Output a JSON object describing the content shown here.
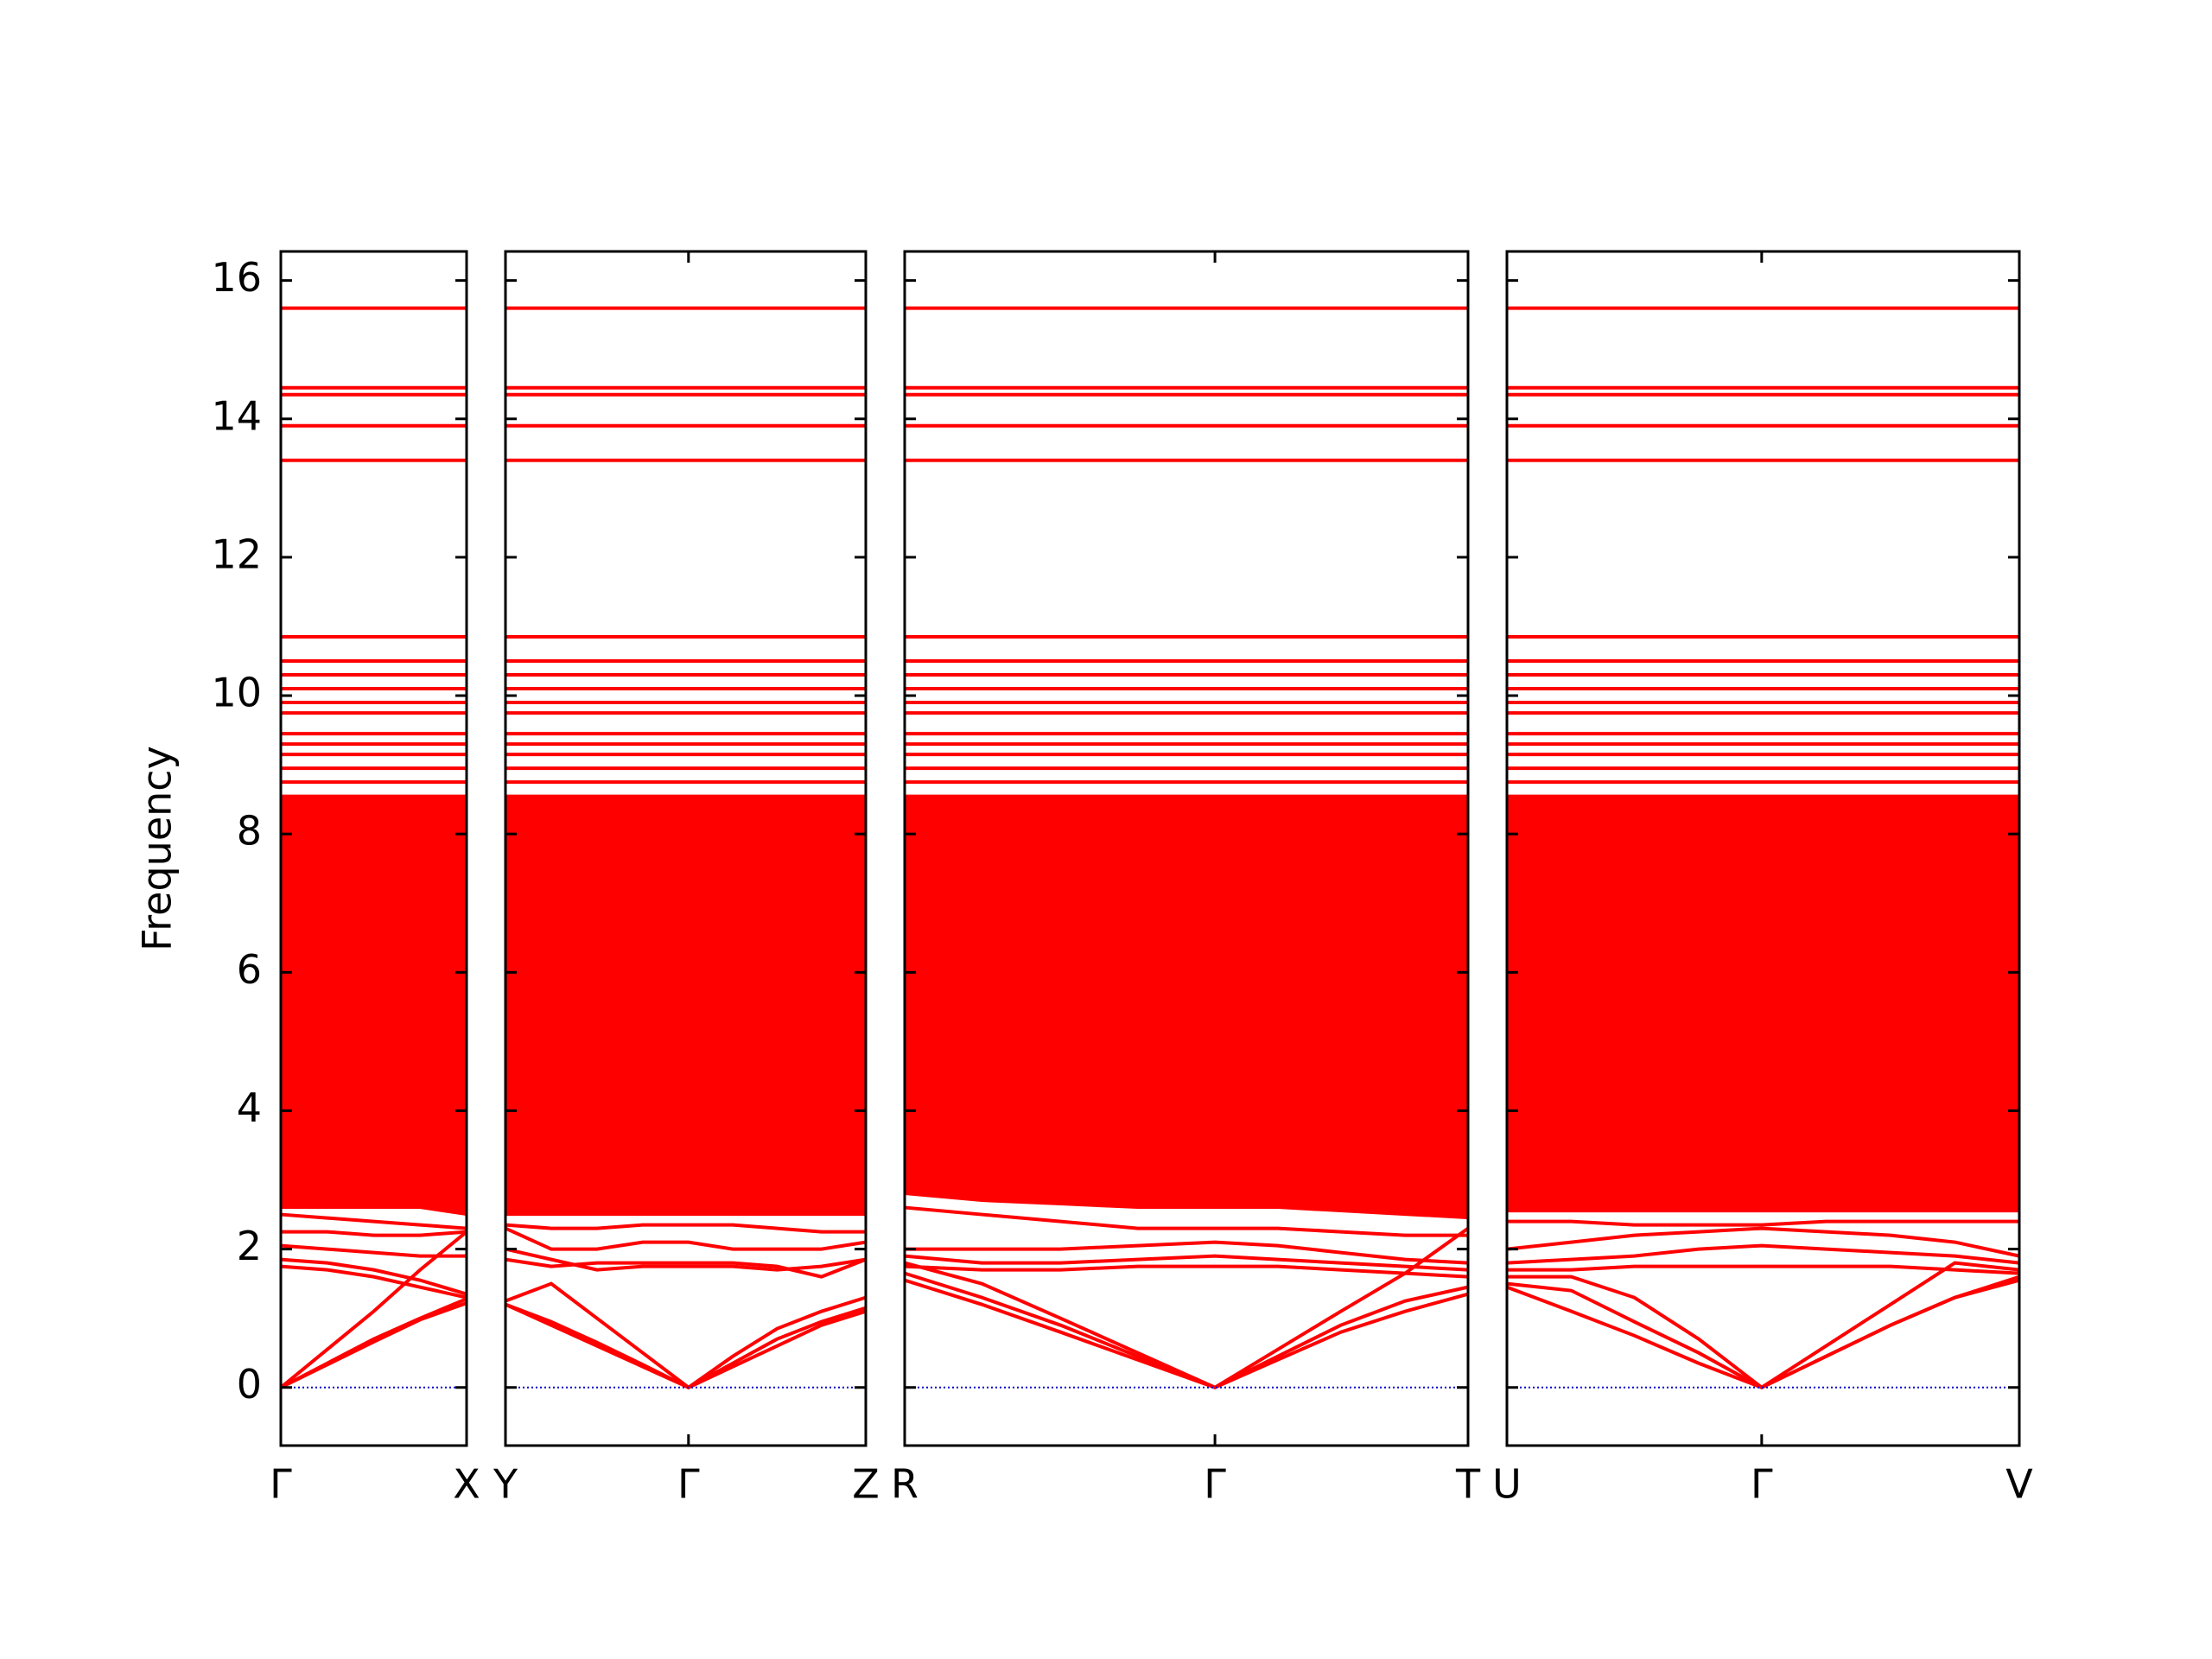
{
  "chart_data": {
    "type": "band",
    "ylabel": "Frequency",
    "ylim": [
      -0.84,
      16.42
    ],
    "yticks": [
      0,
      2,
      4,
      6,
      8,
      10,
      12,
      14,
      16
    ],
    "color": "#ff0000",
    "zero_line": 0,
    "zero_line_color": "#0000cc",
    "flat_bands": [
      15.6,
      14.45,
      14.35,
      13.9,
      13.4,
      10.85,
      10.5,
      10.3,
      10.1,
      9.9,
      9.75,
      9.45,
      9.3,
      9.15,
      8.95,
      8.75
    ],
    "panels": [
      {
        "xlim": [
          0,
          1
        ],
        "xticks": [
          {
            "value": 0,
            "label": "Γ"
          },
          {
            "value": 1,
            "label": "X"
          }
        ],
        "x": [
          0,
          0.25,
          0.5,
          0.75,
          1
        ],
        "bands": [
          [
            0,
            0.55,
            1.1,
            1.7,
            2.25
          ],
          [
            0,
            0.35,
            0.7,
            1.0,
            1.28
          ],
          [
            0,
            0.33,
            0.66,
            0.98,
            1.22
          ],
          [
            1.75,
            1.7,
            1.6,
            1.45,
            1.3
          ],
          [
            1.85,
            1.8,
            1.7,
            1.55,
            1.35
          ],
          [
            2.05,
            2.0,
            1.95,
            1.9,
            1.9
          ],
          [
            2.25,
            2.25,
            2.2,
            2.2,
            2.25
          ],
          [
            2.5,
            2.45,
            2.4,
            2.35,
            2.3
          ]
        ],
        "fill": {
          "lower": [
            2.6,
            2.6,
            2.6,
            2.6,
            2.5
          ],
          "upper": [
            8.55,
            8.55,
            8.55,
            8.55,
            8.55
          ]
        }
      },
      {
        "xlim": [
          0,
          2.52
        ],
        "xticks": [
          {
            "value": 0,
            "label": "Y"
          },
          {
            "value": 1.28,
            "label": "Γ"
          },
          {
            "value": 2.52,
            "label": "Z"
          }
        ],
        "x": [
          0,
          0.32,
          0.64,
          0.96,
          1.28,
          1.59,
          1.9,
          2.21,
          2.52
        ],
        "bands": [
          [
            1.2,
            0.9,
            0.6,
            0.3,
            0,
            0.45,
            0.85,
            1.1,
            1.3
          ],
          [
            1.25,
            1.5,
            1.0,
            0.5,
            0,
            0.35,
            0.7,
            0.95,
            1.15
          ],
          [
            1.2,
            0.95,
            0.65,
            0.33,
            0,
            0.3,
            0.6,
            0.9,
            1.1
          ],
          [
            1.85,
            1.75,
            1.8,
            1.8,
            1.8,
            1.8,
            1.75,
            1.6,
            1.85
          ],
          [
            2.0,
            1.85,
            1.7,
            1.75,
            1.75,
            1.75,
            1.7,
            1.75,
            1.85
          ],
          [
            2.3,
            2.0,
            2.0,
            2.1,
            2.1,
            2.0,
            2.0,
            2.0,
            2.1
          ],
          [
            2.35,
            2.3,
            2.3,
            2.35,
            2.35,
            2.35,
            2.3,
            2.25,
            2.25
          ]
        ],
        "fill": {
          "lower": [
            2.5,
            2.5,
            2.5,
            2.5,
            2.5,
            2.5,
            2.5,
            2.5,
            2.5
          ],
          "upper": [
            8.55,
            8.55,
            8.55,
            8.55,
            8.55,
            8.55,
            8.55,
            8.55,
            8.55
          ]
        }
      },
      {
        "xlim": [
          0,
          3.94
        ],
        "xticks": [
          {
            "value": 0,
            "label": "R"
          },
          {
            "value": 2.17,
            "label": "Γ"
          },
          {
            "value": 3.94,
            "label": "T"
          }
        ],
        "x": [
          0,
          0.54,
          1.09,
          1.63,
          2.17,
          2.61,
          3.05,
          3.5,
          3.94
        ],
        "bands": [
          [
            1.55,
            1.2,
            0.8,
            0.4,
            0,
            0.4,
            0.8,
            1.1,
            1.35
          ],
          [
            1.65,
            1.3,
            0.9,
            0.45,
            0,
            0.45,
            0.9,
            1.25,
            1.45
          ],
          [
            1.8,
            1.5,
            1.0,
            0.5,
            0,
            0.55,
            1.1,
            1.65,
            2.3
          ],
          [
            1.75,
            1.7,
            1.7,
            1.75,
            1.75,
            1.75,
            1.7,
            1.65,
            1.6
          ],
          [
            1.9,
            1.8,
            1.8,
            1.85,
            1.9,
            1.85,
            1.8,
            1.75,
            1.7
          ],
          [
            2.0,
            2.0,
            2.0,
            2.05,
            2.1,
            2.05,
            1.95,
            1.85,
            1.8
          ],
          [
            2.6,
            2.5,
            2.4,
            2.3,
            2.3,
            2.3,
            2.25,
            2.2,
            2.2
          ]
        ],
        "fill": {
          "lower": [
            2.8,
            2.7,
            2.65,
            2.6,
            2.6,
            2.6,
            2.55,
            2.5,
            2.45
          ],
          "upper": [
            8.55,
            8.55,
            8.55,
            8.55,
            8.55,
            8.55,
            8.55,
            8.55,
            8.55
          ]
        }
      },
      {
        "xlim": [
          0,
          3.58
        ],
        "xticks": [
          {
            "value": 0,
            "label": "U"
          },
          {
            "value": 1.78,
            "label": "Γ"
          },
          {
            "value": 3.58,
            "label": "V"
          }
        ],
        "x": [
          0,
          0.45,
          0.89,
          1.34,
          1.78,
          2.23,
          2.68,
          3.13,
          3.58
        ],
        "bands": [
          [
            1.45,
            1.1,
            0.75,
            0.35,
            0,
            0.45,
            0.9,
            1.3,
            1.6
          ],
          [
            1.5,
            1.4,
            0.95,
            0.5,
            0,
            0.45,
            0.9,
            1.3,
            1.55
          ],
          [
            1.6,
            1.6,
            1.3,
            0.7,
            0,
            0.6,
            1.2,
            1.8,
            1.7
          ],
          [
            1.7,
            1.7,
            1.75,
            1.75,
            1.75,
            1.75,
            1.75,
            1.7,
            1.65
          ],
          [
            1.8,
            1.85,
            1.9,
            2.0,
            2.05,
            2.0,
            1.95,
            1.9,
            1.8
          ],
          [
            2.0,
            2.1,
            2.2,
            2.25,
            2.3,
            2.25,
            2.2,
            2.1,
            1.9
          ],
          [
            2.4,
            2.4,
            2.35,
            2.35,
            2.35,
            2.4,
            2.4,
            2.4,
            2.4
          ]
        ],
        "fill": {
          "lower": [
            2.55,
            2.55,
            2.55,
            2.55,
            2.55,
            2.55,
            2.55,
            2.55,
            2.55
          ],
          "upper": [
            8.55,
            8.55,
            8.55,
            8.55,
            8.55,
            8.55,
            8.55,
            8.55,
            8.55
          ]
        }
      }
    ]
  }
}
